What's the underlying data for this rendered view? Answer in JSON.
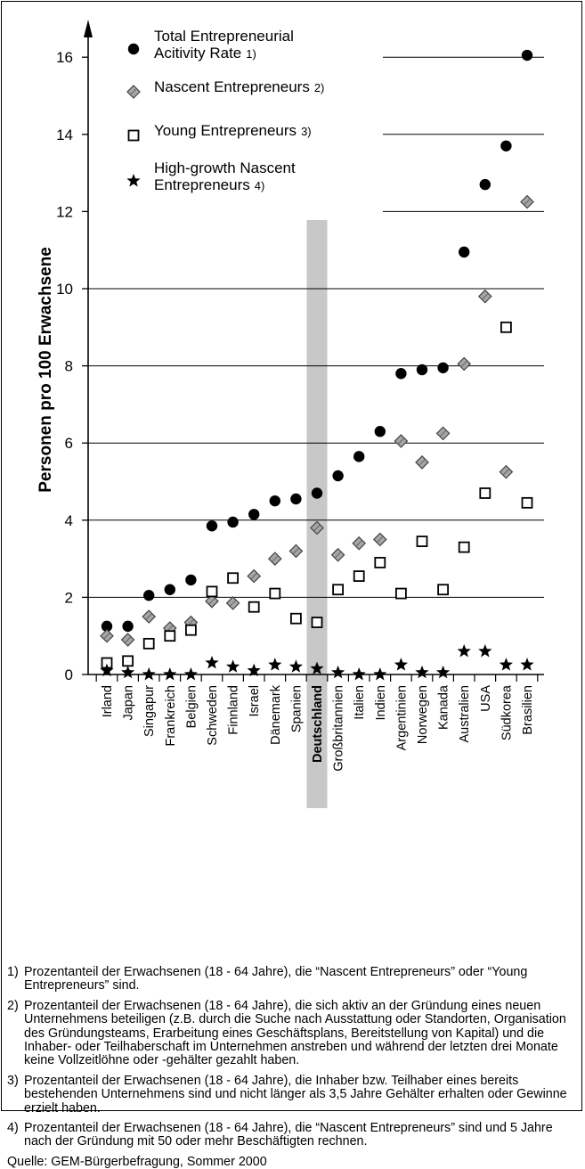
{
  "chart_data": {
    "type": "scatter",
    "ylabel": "Personen pro 100 Erwachsene",
    "ylim": [
      0,
      17
    ],
    "yticks": [
      0,
      2,
      4,
      6,
      8,
      10,
      12,
      14,
      16
    ],
    "grid": true,
    "legend_position": "top-left",
    "highlight_category": "Deutschland",
    "categories": [
      "Irland",
      "Japan",
      "Singapur",
      "Frankreich",
      "Belgien",
      "Schweden",
      "Finnland",
      "Israel",
      "Dänemark",
      "Spanien",
      "Deutschland",
      "Großbritannien",
      "Italien",
      "Indien",
      "Argentinien",
      "Norwegen",
      "Kanada",
      "Australien",
      "USA",
      "Südkorea",
      "Brasilien"
    ],
    "series": [
      {
        "name": "Total Entrepreneurial Acitivity Rate",
        "note": "1)",
        "marker": "circle",
        "values": [
          1.25,
          1.25,
          2.05,
          2.2,
          2.45,
          3.85,
          3.95,
          4.15,
          4.5,
          4.55,
          4.7,
          5.15,
          5.65,
          6.3,
          7.8,
          7.9,
          7.95,
          10.95,
          12.7,
          13.7,
          16.05
        ]
      },
      {
        "name": "Nascent Entrepreneurs",
        "note": "2)",
        "marker": "diamond",
        "values": [
          1.0,
          0.9,
          1.5,
          1.2,
          1.35,
          1.9,
          1.85,
          2.55,
          3.0,
          3.2,
          3.8,
          3.1,
          3.4,
          3.5,
          6.05,
          5.5,
          6.25,
          8.05,
          9.8,
          5.25,
          12.25
        ]
      },
      {
        "name": "Young Entrepreneurs",
        "note": "3)",
        "marker": "square",
        "values": [
          0.3,
          0.35,
          0.8,
          1.0,
          1.15,
          2.15,
          2.5,
          1.75,
          2.1,
          1.45,
          1.35,
          2.2,
          2.55,
          2.9,
          2.1,
          3.45,
          2.2,
          3.3,
          4.7,
          9.0,
          4.45
        ]
      },
      {
        "name": "High-growth Nascent Entrepreneurs",
        "note": "4)",
        "marker": "star",
        "values": [
          0.1,
          0.05,
          0.0,
          0.0,
          0.0,
          0.3,
          0.2,
          0.1,
          0.25,
          0.2,
          0.15,
          0.05,
          0.0,
          0.0,
          0.25,
          0.05,
          0.05,
          0.6,
          0.6,
          0.25,
          0.25
        ]
      }
    ]
  },
  "legend": {
    "items": [
      {
        "text": "Total Entrepreneurial\nAcitivity Rate",
        "note": "1)"
      },
      {
        "text": "Nascent Entrepreneurs",
        "note": "2)"
      },
      {
        "text": "Young Entrepreneurs",
        "note": "3)"
      },
      {
        "text": "High-growth Nascent\nEntrepreneurs",
        "note": "4)"
      }
    ]
  },
  "footnotes": [
    {
      "num": "1)",
      "text": "Prozentanteil der Erwachsenen (18 - 64 Jahre), die “Nascent Entrepreneurs” oder “Young Entrepreneurs” sind."
    },
    {
      "num": "2)",
      "text": "Prozentanteil der Erwachsenen (18 - 64 Jahre), die sich aktiv an der Gründung eines neuen Unternehmens beteiligen (z.B. durch die Suche nach Ausstattung oder Standorten, Organisation des Gründungsteams, Erarbeitung eines Geschäftsplans, Bereitstellung von Kapital) und die Inhaber- oder Teilhaberschaft im Unternehmen anstreben und während der letzten drei Monate keine Vollzeitlöhne oder -gehälter gezahlt haben."
    },
    {
      "num": "3)",
      "text": "Prozentanteil der Erwachsenen (18 - 64 Jahre), die Inhaber bzw. Teilhaber eines bereits bestehenden Unternehmens sind und nicht länger als 3,5 Jahre Gehälter erhalten oder Gewinne erzielt haben."
    },
    {
      "num": "4)",
      "text": "Prozentanteil der Erwachsenen (18 - 64 Jahre), die “Nascent Entrepreneurs” sind und 5 Jahre nach der Gründung mit 50 oder mehr Beschäftigten rechnen."
    }
  ],
  "source": "Quelle: GEM-Bürgerbefragung, Sommer 2000",
  "colors": {
    "highlight": "#c8c8c8",
    "diamond_fill": "#a6a6a6",
    "axis": "#000000"
  }
}
